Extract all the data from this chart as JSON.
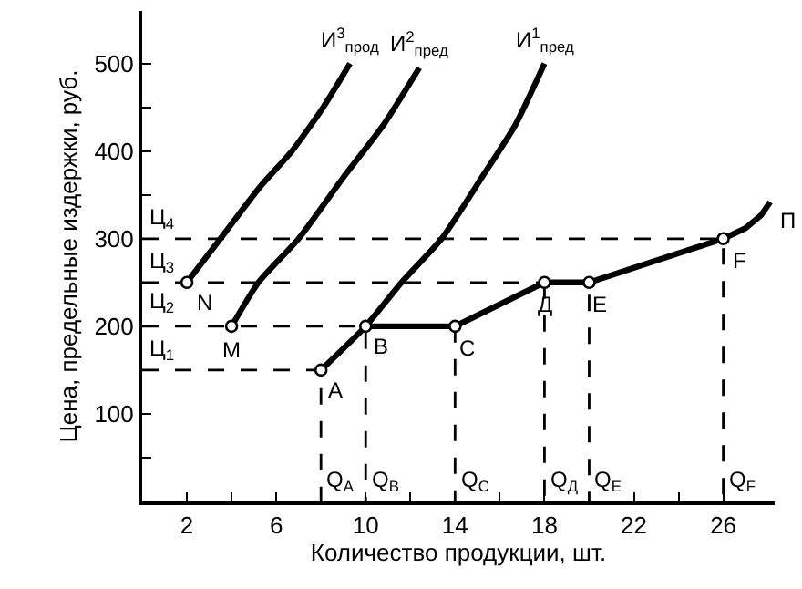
{
  "chart_data": {
    "type": "line",
    "xlabel": "Количество продукции, шт.",
    "ylabel": "Цена, предельные издержки, руб.",
    "xlim": [
      0,
      28.3
    ],
    "ylim": [
      0,
      560
    ],
    "xticks": [
      2,
      {
        "value": 4,
        "label": null
      },
      6,
      {
        "value": 8,
        "label": null
      },
      10,
      {
        "value": 12,
        "label": null
      },
      14,
      {
        "value": 16,
        "label": null
      },
      18,
      {
        "value": 20,
        "label": null
      },
      22,
      {
        "value": 24,
        "label": null
      },
      26
    ],
    "yticks": [
      {
        "value": 50,
        "label": null
      },
      100,
      {
        "value": 150,
        "label": null
      },
      200,
      {
        "value": 250,
        "label": null
      },
      300,
      {
        "value": 350,
        "label": null
      },
      400,
      {
        "value": 450,
        "label": null
      },
      500
    ],
    "legend": false,
    "series": [
      {
        "name": "И$^{3}$$_{прод}$",
        "color": "#000000",
        "line_style": "solid",
        "marker": "none",
        "x": [
          2,
          3.5,
          5.3,
          6.7,
          8.1,
          9.3
        ],
        "values": [
          250,
          300,
          360,
          400,
          450,
          500
        ]
      },
      {
        "name": "И$^{2}$$_{пред}$",
        "color": "#000000",
        "line_style": "solid",
        "marker": "none",
        "x": [
          4,
          5.2,
          7,
          9,
          10.8,
          12.4
        ],
        "values": [
          200,
          250,
          300,
          370,
          430,
          495
        ]
      },
      {
        "name": "И$^{1}$$_{пред}$",
        "color": "#000000",
        "line_style": "solid",
        "marker": "none",
        "x": [
          8,
          10,
          11.6,
          13.4,
          15.2,
          16.7,
          18
        ],
        "values": [
          150,
          200,
          250,
          300,
          370,
          430,
          500
        ]
      },
      {
        "color": "#000000",
        "line_style": "solid",
        "marker": "none",
        "x": [
          10,
          14,
          18,
          20,
          26,
          27,
          27.7,
          28.1
        ],
        "values": [
          200,
          200,
          250,
          250,
          300,
          312,
          327,
          342
        ]
      },
      {
        "color": "#000000",
        "line_style": "dashed",
        "marker": "none",
        "x": [
          0,
          8,
          8
        ],
        "values": [
          150,
          150,
          0
        ]
      },
      {
        "color": "#000000",
        "line_style": "dashed",
        "marker": "none",
        "x": [
          0,
          10,
          10
        ],
        "values": [
          200,
          200,
          0
        ]
      },
      {
        "color": "#000000",
        "line_style": "dashed",
        "marker": "none",
        "x": [
          14,
          14
        ],
        "values": [
          200,
          0
        ]
      },
      {
        "color": "#000000",
        "line_style": "dashed",
        "marker": "none",
        "x": [
          0,
          20,
          20
        ],
        "values": [
          250,
          250,
          0
        ]
      },
      {
        "color": "#000000",
        "line_style": "dashed",
        "marker": "none",
        "x": [
          18,
          18
        ],
        "values": [
          250,
          0
        ]
      },
      {
        "color": "#000000",
        "line_style": "dashed",
        "marker": "none",
        "x": [
          0,
          26,
          26
        ],
        "values": [
          300,
          300,
          0
        ]
      },
      {
        "type": "scatter",
        "color": "#000000",
        "marker": "circle",
        "x": [
          2,
          4,
          8,
          10,
          14,
          18,
          20,
          26
        ],
        "values": [
          250,
          200,
          150,
          200,
          200,
          250,
          250,
          300
        ]
      }
    ],
    "annotations": [
      {
        "text": "N",
        "x": 2,
        "y": 250
      },
      {
        "text": "M",
        "x": 4,
        "y": 200
      },
      {
        "text": "A",
        "x": 8,
        "y": 150
      },
      {
        "text": "B",
        "x": 10,
        "y": 200
      },
      {
        "text": "C",
        "x": 14,
        "y": 200
      },
      {
        "text": "Д",
        "x": 18,
        "y": 250
      },
      {
        "text": "E",
        "x": 20,
        "y": 250
      },
      {
        "text": "F",
        "x": 26,
        "y": 300
      },
      {
        "text": "П",
        "x": 28.1,
        "y": 320
      },
      {
        "text": "Ц$_{1}$",
        "x": 0,
        "y": 150
      },
      {
        "text": "Ц$_{2}$",
        "x": 0,
        "y": 200
      },
      {
        "text": "Ц$_{3}$",
        "x": 0,
        "y": 250
      },
      {
        "text": "Ц$_{4}$",
        "x": 0,
        "y": 300
      },
      {
        "text": "Q$_{A}$",
        "x": 8,
        "y": 0
      },
      {
        "text": "Q$_{B}$",
        "x": 10,
        "y": 0
      },
      {
        "text": "Q$_{C}$",
        "x": 14,
        "y": 0
      },
      {
        "text": "Q$_{Д}$",
        "x": 18,
        "y": 0
      },
      {
        "text": "Q$_{E}$",
        "x": 20,
        "y": 0
      },
      {
        "text": "Q$_{F}$",
        "x": 26,
        "y": 0
      }
    ]
  }
}
